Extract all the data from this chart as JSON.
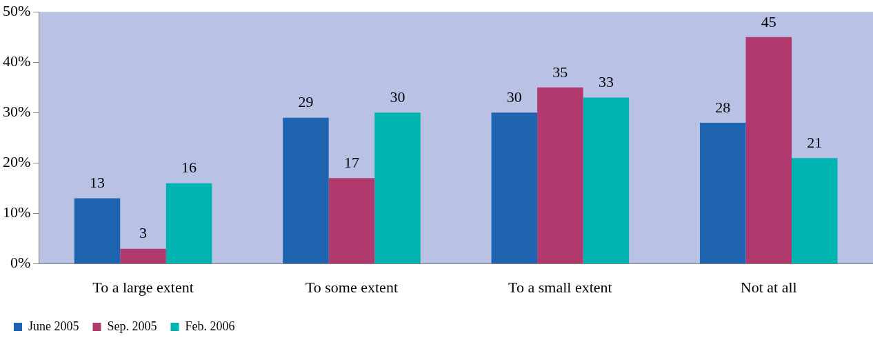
{
  "chart_data": {
    "type": "bar",
    "categories": [
      "To a large extent",
      "To some extent",
      "To a small extent",
      "Not at all"
    ],
    "series": [
      {
        "name": "June 2005",
        "color": "#1f64b1",
        "values": [
          13,
          29,
          30,
          28
        ]
      },
      {
        "name": "Sep. 2005",
        "color": "#b03a6e",
        "values": [
          3,
          17,
          35,
          45
        ]
      },
      {
        "name": "Feb. 2006",
        "color": "#00b5b1",
        "values": [
          16,
          30,
          33,
          21
        ]
      }
    ],
    "ylim": [
      0,
      50
    ],
    "yticks": [
      {
        "value": 0,
        "label": "0%"
      },
      {
        "value": 10,
        "label": "10%"
      },
      {
        "value": 20,
        "label": "20%"
      },
      {
        "value": 30,
        "label": "30%"
      },
      {
        "value": 40,
        "label": "40%"
      },
      {
        "value": 50,
        "label": "50%"
      }
    ],
    "grid": false,
    "legend": "bottom left",
    "data_labels": true
  }
}
